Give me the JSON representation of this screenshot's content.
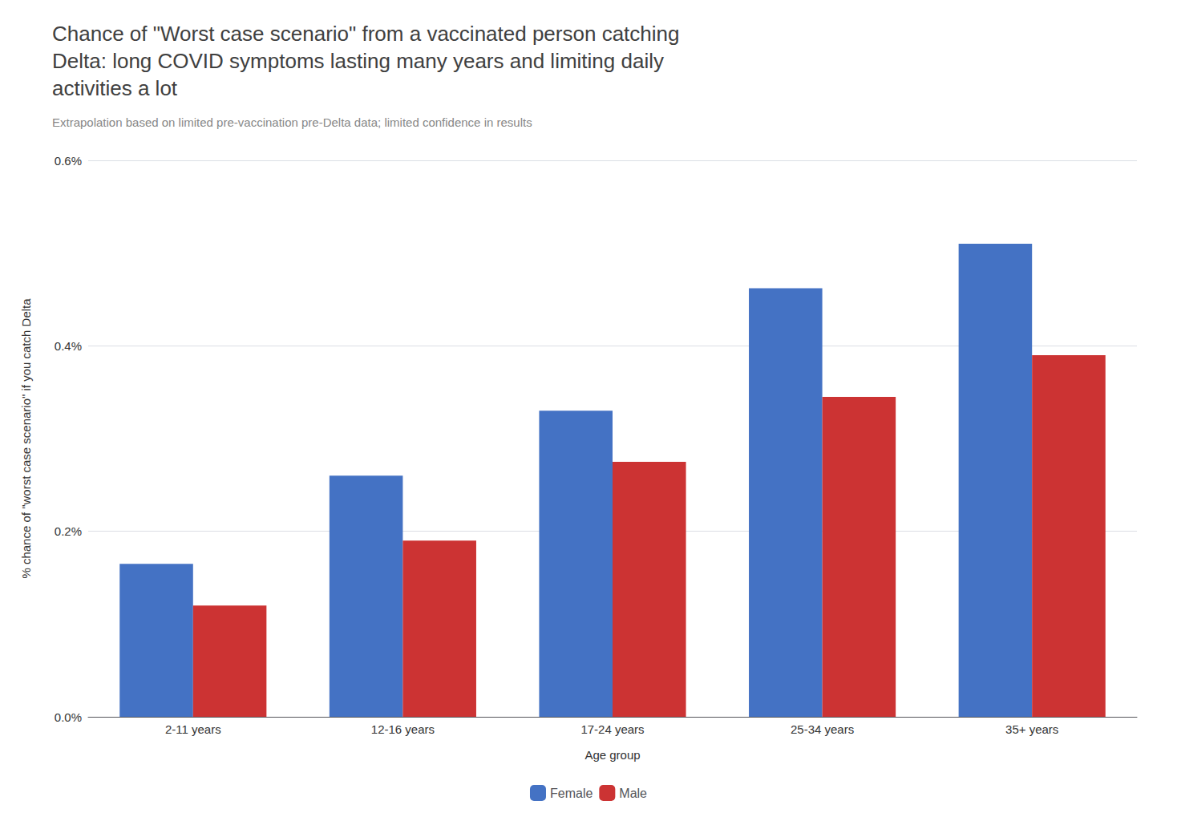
{
  "chart_data": {
    "type": "bar",
    "title": "Chance of \"Worst case scenario\" from a vaccinated person catching\nDelta: long COVID symptoms lasting many years and limiting daily\nactivities a lot",
    "subtitle": "Extrapolation based on limited pre-vaccination pre-Delta data; limited confidence in results",
    "xlabel": "Age group",
    "ylabel": "% chance of \"worst case scenario\" if you catch Delta",
    "categories": [
      "2-11 years",
      "12-16 years",
      "17-24 years",
      "25-34 years",
      "35+ years"
    ],
    "series": [
      {
        "name": "Female",
        "color": "#4472C4",
        "values": [
          0.00165,
          0.0026,
          0.0033,
          0.00462,
          0.0051
        ]
      },
      {
        "name": "Male",
        "color": "#CC3333",
        "values": [
          0.0012,
          0.0019,
          0.00275,
          0.00345,
          0.0039
        ]
      }
    ],
    "ylim": [
      0,
      0.006
    ],
    "yticks": [
      {
        "value": 0.0,
        "label": "0.0%"
      },
      {
        "value": 0.002,
        "label": "0.2%"
      },
      {
        "value": 0.004,
        "label": "0.4%"
      },
      {
        "value": 0.006,
        "label": "0.6%"
      }
    ],
    "grid": true,
    "legend": "bottom"
  }
}
